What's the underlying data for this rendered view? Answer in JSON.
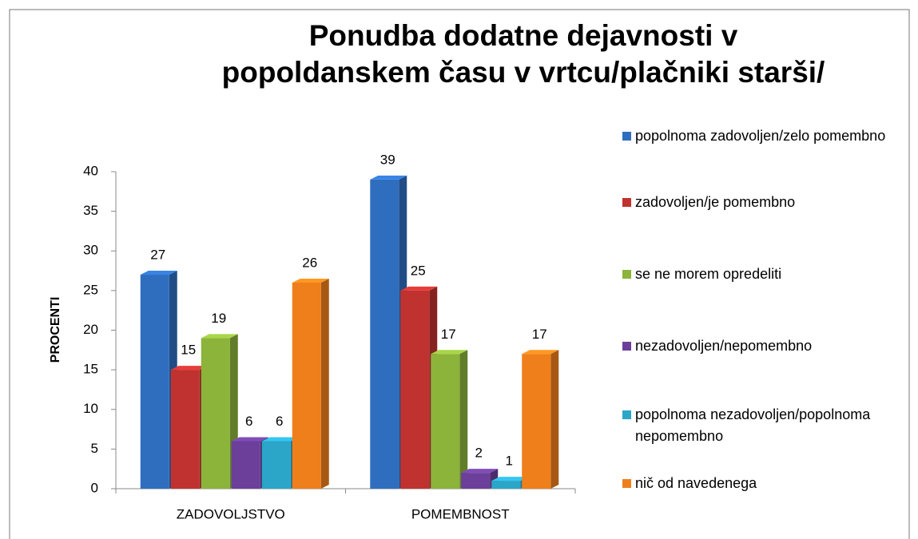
{
  "chart_data": {
    "type": "bar",
    "title": "Ponudba dodatne dejavnosti v popoldanskem času v vrtcu/plačniki starši/",
    "y_label": "PROCENTI",
    "categories": [
      "ZADOVOLJSTVO",
      "POMEMBNOST"
    ],
    "series": [
      {
        "name": "popolnoma zadovoljen/zelo pomembno",
        "color": "#2f6ebf",
        "values": [
          27,
          39
        ]
      },
      {
        "name": "zadovoljen/je pomembno",
        "color": "#c0322f",
        "values": [
          15,
          25
        ]
      },
      {
        "name": "se ne morem opredeliti",
        "color": "#8cb33a",
        "values": [
          19,
          17
        ]
      },
      {
        "name": "nezadovoljen/nepomembno",
        "color": "#6b3f9a",
        "values": [
          6,
          2
        ]
      },
      {
        "name": "popolnoma nezadovoljen/popolnoma nepomembno",
        "color": "#2ba5c8",
        "values": [
          6,
          1
        ]
      },
      {
        "name": "nič od navedenega",
        "color": "#ef7f1b",
        "values": [
          26,
          17
        ]
      }
    ],
    "ylim": [
      0,
      40
    ],
    "yticks": [
      0,
      5,
      10,
      15,
      20,
      25,
      30,
      35,
      40
    ]
  }
}
